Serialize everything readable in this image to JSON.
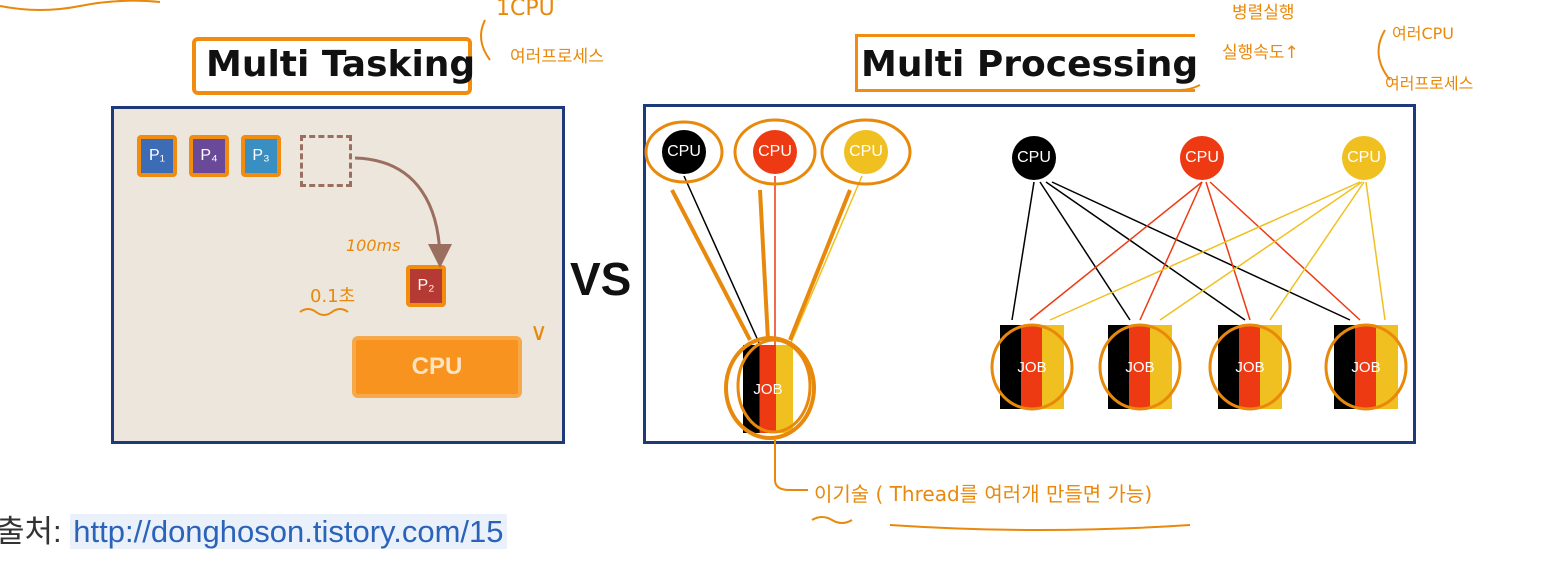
{
  "titles": {
    "left": "Multi Tasking",
    "right": "Multi Processing"
  },
  "vs": "VS",
  "multitasking": {
    "processes": [
      {
        "label": "P₁",
        "color": "#3b6cb5"
      },
      {
        "label": "P₄",
        "color": "#6a4a98"
      },
      {
        "label": "P₃",
        "color": "#3a8fc2"
      }
    ],
    "running_process": {
      "label": "P₂",
      "color": "#b53a33"
    },
    "cpu_label": "CPU",
    "annotations": {
      "time_ms": "100ms",
      "time_sec": "0.1초",
      "check": "∨"
    }
  },
  "multiprocessing": {
    "left_group": {
      "cpus": [
        {
          "label": "CPU",
          "color": "#000000"
        },
        {
          "label": "CPU",
          "color": "#ee3a12"
        },
        {
          "label": "CPU",
          "color": "#f0c020"
        }
      ],
      "jobs": [
        "JOB"
      ]
    },
    "right_group": {
      "cpus": [
        {
          "label": "CPU",
          "color": "#000000"
        },
        {
          "label": "CPU",
          "color": "#ee3a12"
        },
        {
          "label": "CPU",
          "color": "#f0c020"
        }
      ],
      "jobs": [
        "JOB",
        "JOB",
        "JOB",
        "JOB"
      ]
    }
  },
  "handwritten_notes": {
    "top_left": "1CPU",
    "top_left_2": "여러프로세스",
    "top_right_1": "병렬실행",
    "top_right_2": "실행속도↑",
    "far_right_1": "여러CPU",
    "far_right_2": "여러프로세스",
    "bottom": "이기술 ( Thread를 여러개 만들면 가능)"
  },
  "source": {
    "label": "출처:",
    "url": "http://donghoson.tistory.com/15"
  },
  "colors": {
    "annotation": "#e8890c",
    "panel_border": "#1f3a7a",
    "link": "#2a63b8"
  }
}
